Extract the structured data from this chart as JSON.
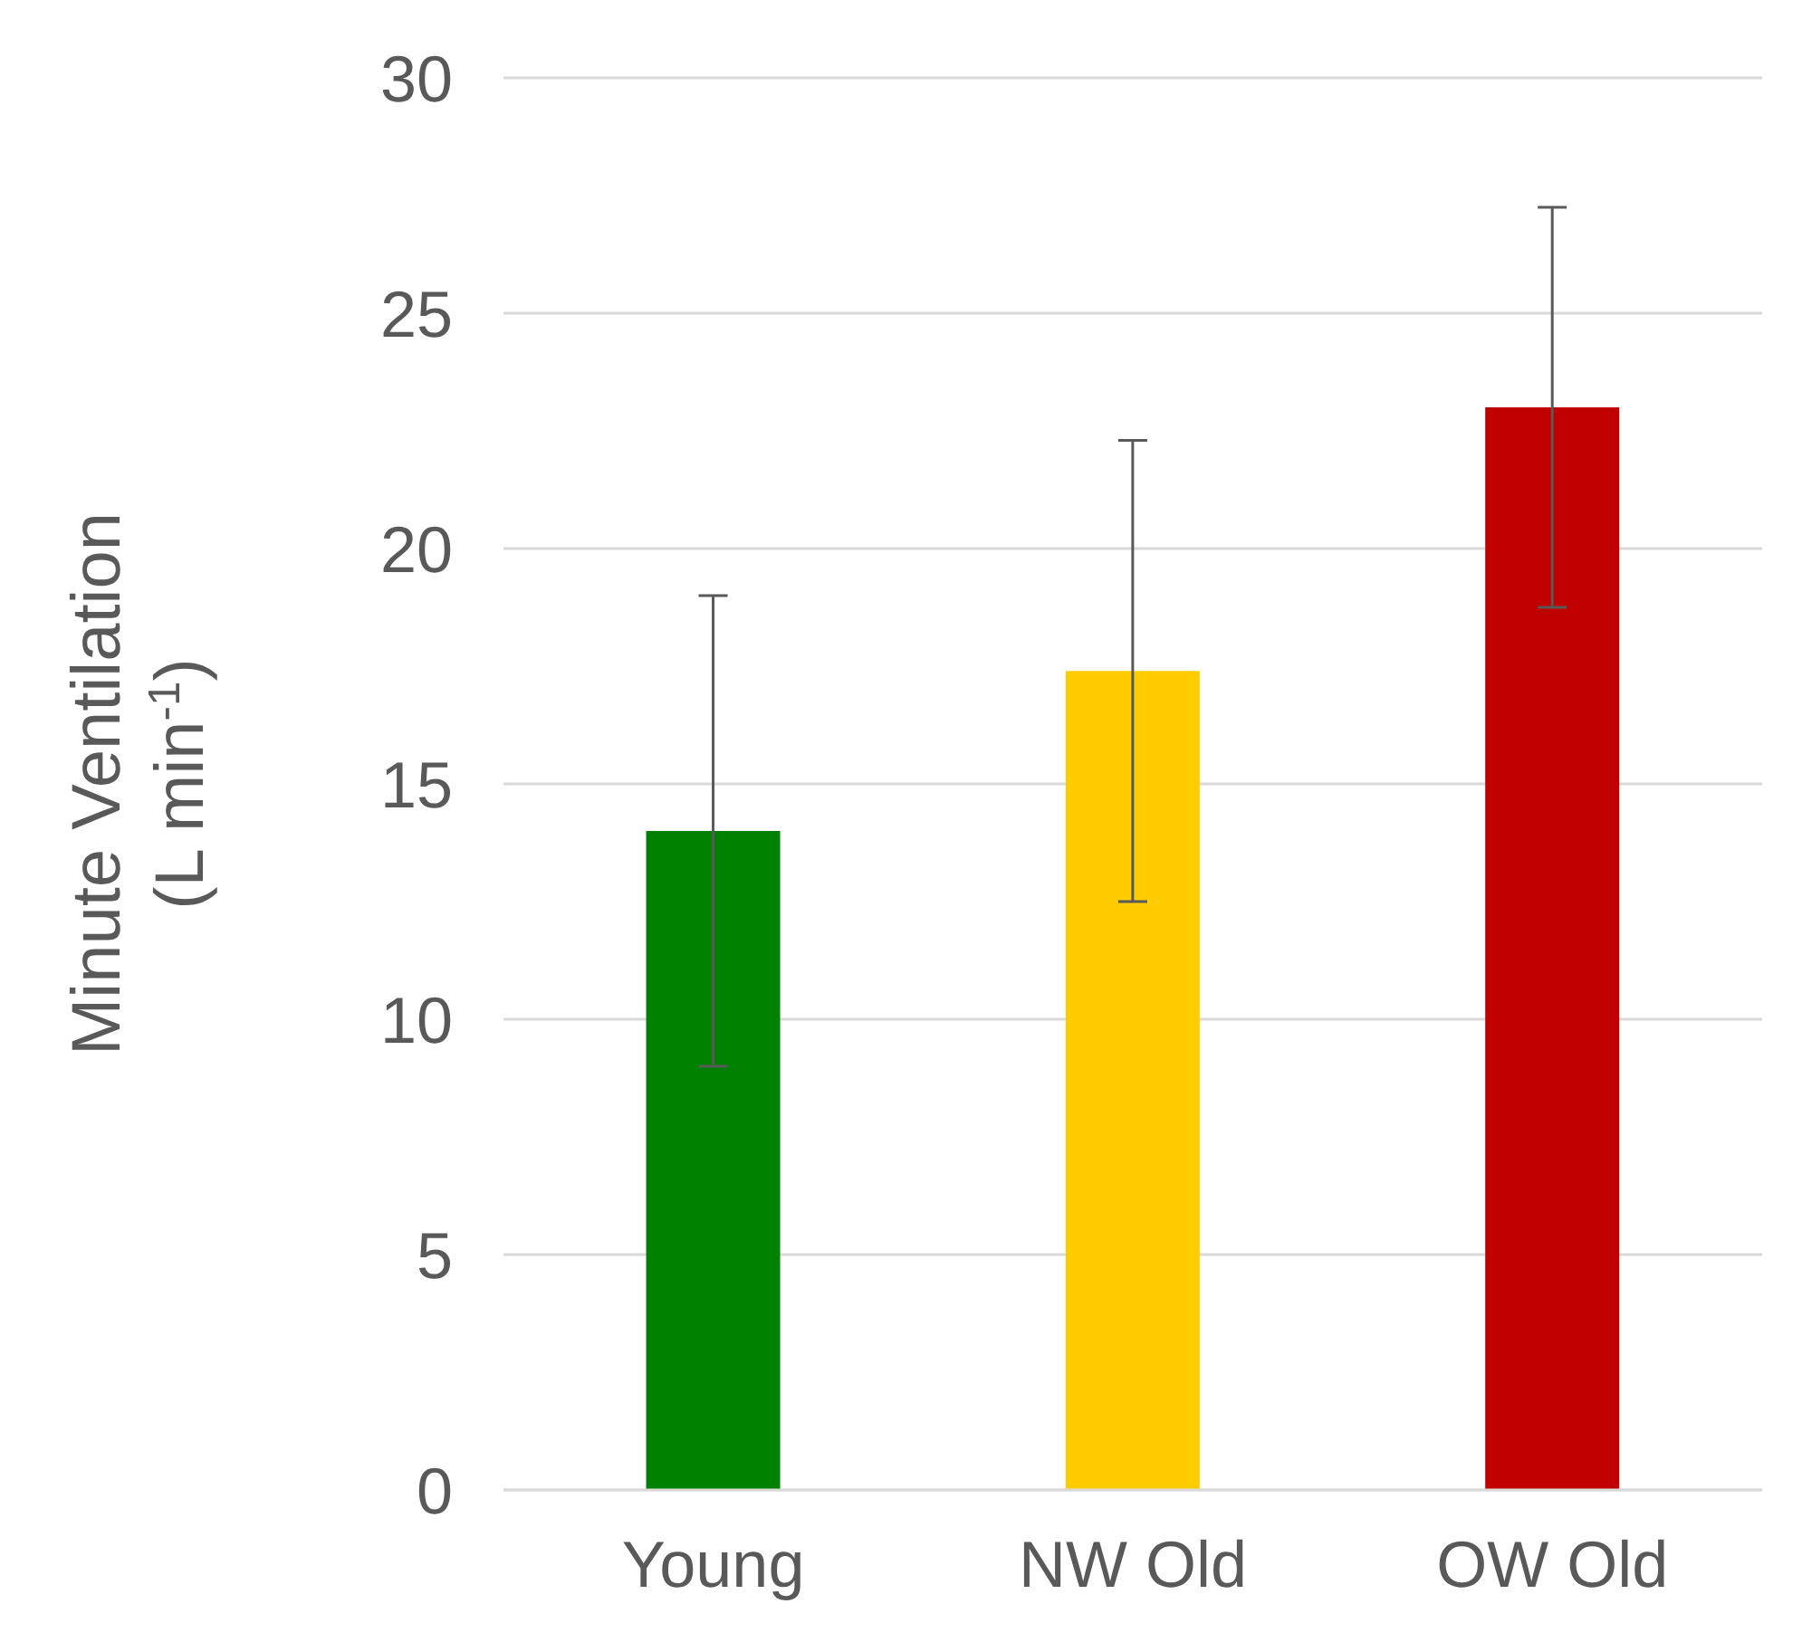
{
  "chart_data": {
    "type": "bar",
    "ylabel": "Minute Ventilation\n(L min$^{-1}$)",
    "categories": [
      "Young",
      "NW Old",
      "OW Old"
    ],
    "values": [
      14.0,
      17.4,
      23.0
    ],
    "errors": [
      5.0,
      4.9,
      4.25
    ],
    "colors": [
      "#008000",
      "#ffcc00",
      "#c00000"
    ],
    "ylim": [
      0,
      30
    ],
    "yticks": [
      0,
      5,
      10,
      15,
      20,
      25,
      30
    ],
    "grid": "y",
    "legend": false
  }
}
